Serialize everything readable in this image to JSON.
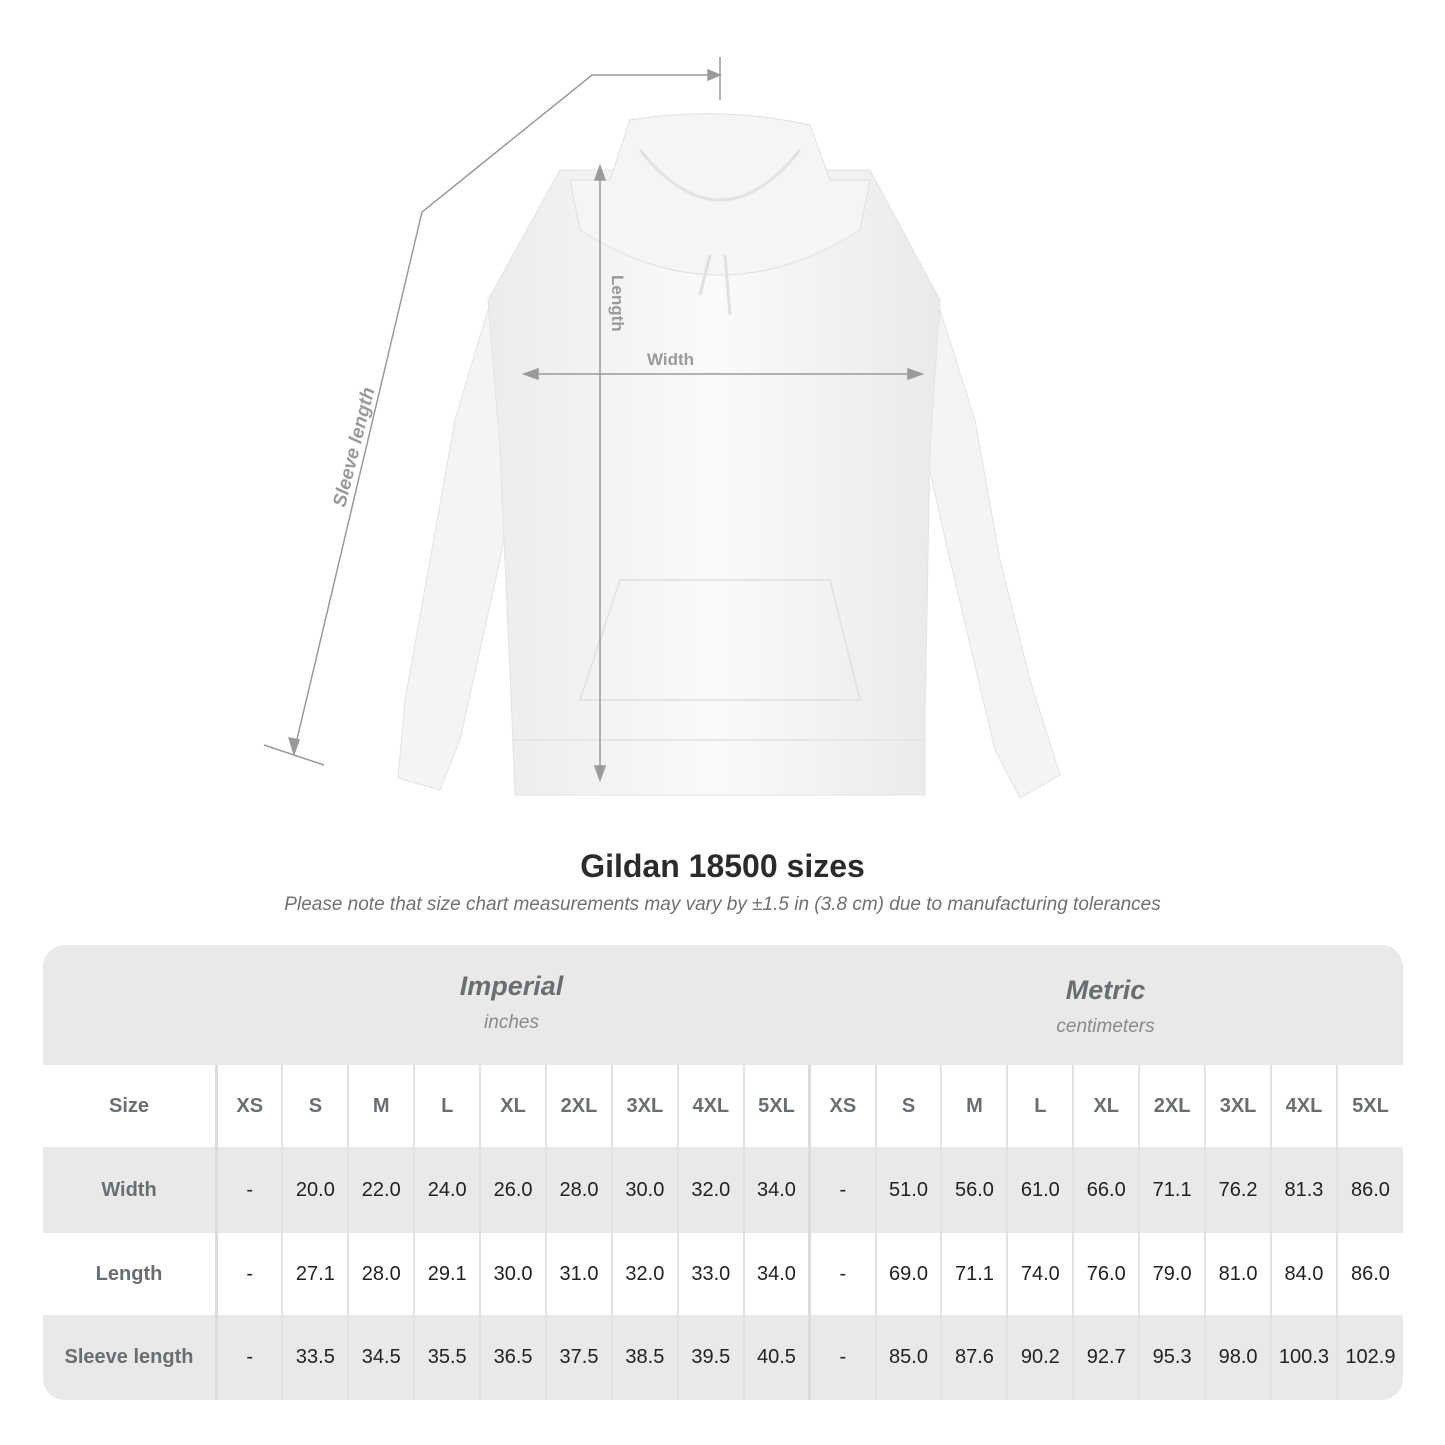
{
  "figure": {
    "labels": {
      "length": "Length",
      "width": "Width",
      "sleeve": "Sleeve length"
    },
    "line_color": "#9a9a9a"
  },
  "title": "Gildan 18500 sizes",
  "subtitle": "Please note that size chart measurements may vary by ±1.5 in (3.8 cm) due to manufacturing tolerances",
  "imperial": {
    "label": "Imperial",
    "unit": "inches"
  },
  "metric": {
    "label": "Metric",
    "unit": "centimeters"
  },
  "table": {
    "size_label": "Size",
    "sizes": [
      "XS",
      "S",
      "M",
      "L",
      "XL",
      "2XL",
      "3XL",
      "4XL",
      "5XL"
    ],
    "rows": [
      {
        "label": "Width",
        "imperial": [
          "-",
          "20.0",
          "22.0",
          "24.0",
          "26.0",
          "28.0",
          "30.0",
          "32.0",
          "34.0"
        ],
        "metric": [
          "-",
          "51.0",
          "56.0",
          "61.0",
          "66.0",
          "71.1",
          "76.2",
          "81.3",
          "86.0"
        ]
      },
      {
        "label": "Length",
        "imperial": [
          "-",
          "27.1",
          "28.0",
          "29.1",
          "30.0",
          "31.0",
          "32.0",
          "33.0",
          "34.0"
        ],
        "metric": [
          "-",
          "69.0",
          "71.1",
          "74.0",
          "76.0",
          "79.0",
          "81.0",
          "84.0",
          "86.0"
        ]
      },
      {
        "label": "Sleeve length",
        "imperial": [
          "-",
          "33.5",
          "34.5",
          "35.5",
          "36.5",
          "37.5",
          "38.5",
          "39.5",
          "40.5"
        ],
        "metric": [
          "-",
          "85.0",
          "87.6",
          "90.2",
          "92.7",
          "95.3",
          "98.0",
          "100.3",
          "102.9"
        ]
      }
    ]
  }
}
